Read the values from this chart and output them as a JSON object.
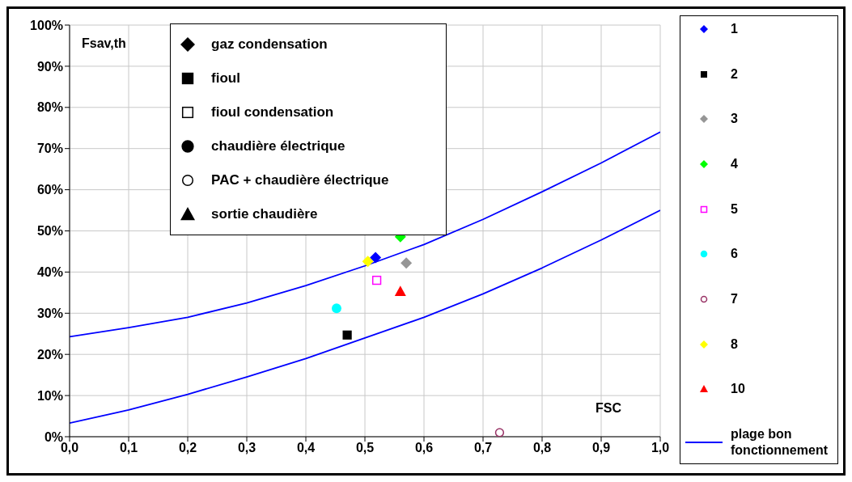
{
  "chart_data": {
    "type": "scatter",
    "xlabel": "FSC",
    "ylabel": "Fsav,th",
    "annotations": [
      "gaz condensation",
      "fioul",
      "fioul condensation",
      "chaudière électrique",
      "PAC + chaudière électrique",
      "sortie chaudière"
    ],
    "series": [
      {
        "name": "1",
        "color": "#0000ff",
        "marker": "diamond",
        "x": [
          0.518
        ],
        "values": [
          43.5
        ]
      },
      {
        "name": "2",
        "color": "#000000",
        "marker": "square",
        "x": [
          0.47
        ],
        "values": [
          24.7
        ]
      },
      {
        "name": "3",
        "color": "#969696",
        "marker": "diamond",
        "x": [
          0.57
        ],
        "values": [
          42.2
        ]
      },
      {
        "name": "4",
        "color": "#00ff00",
        "marker": "diamond",
        "x": [
          0.56
        ],
        "values": [
          48.6
        ]
      },
      {
        "name": "5",
        "color": "#ff00ff",
        "marker": "square-open",
        "x": [
          0.52
        ],
        "values": [
          38
        ]
      },
      {
        "name": "6",
        "color": "#00ffff",
        "marker": "circle",
        "x": [
          0.452
        ],
        "values": [
          31.2
        ]
      },
      {
        "name": "7",
        "color": "#993366",
        "marker": "circle-open",
        "x": [
          0.728
        ],
        "values": [
          1
        ]
      },
      {
        "name": "8",
        "color": "#ffff00",
        "marker": "diamond",
        "x": [
          0.505
        ],
        "values": [
          42.6
        ]
      },
      {
        "name": "10",
        "color": "#ff0000",
        "marker": "triangle",
        "x": [
          0.56
        ],
        "values": [
          35.3
        ]
      },
      {
        "name": "plage bon fonctionnement",
        "type": "line",
        "color": "#0000ff",
        "marker": "none",
        "x": [
          0,
          0.1,
          0.2,
          0.3,
          0.4,
          0.5,
          0.6,
          0.7,
          0.8,
          0.9,
          1.0
        ],
        "values": [
          24.3,
          26.5,
          29,
          32.5,
          36.7,
          41.5,
          46.7,
          52.8,
          59.5,
          66.5,
          74
        ]
      },
      {
        "type": "line",
        "color": "#0000ff",
        "marker": "none",
        "x": [
          0,
          0.1,
          0.2,
          0.3,
          0.4,
          0.5,
          0.6,
          0.7,
          0.8,
          0.9,
          1.0
        ],
        "values": [
          3.3,
          6.5,
          10.3,
          14.5,
          19,
          24,
          29,
          34.7,
          41,
          47.8,
          55
        ]
      }
    ],
    "xlim": [
      0,
      1
    ],
    "xticks": [
      {
        "value": 0,
        "label": "0,0"
      },
      {
        "value": 0.1,
        "label": "0,1"
      },
      {
        "value": 0.2,
        "label": "0,2"
      },
      {
        "value": 0.3,
        "label": "0,3"
      },
      {
        "value": 0.4,
        "label": "0,4"
      },
      {
        "value": 0.5,
        "label": "0,5"
      },
      {
        "value": 0.6,
        "label": "0,6"
      },
      {
        "value": 0.7,
        "label": "0,7"
      },
      {
        "value": 0.8,
        "label": "0,8"
      },
      {
        "value": 0.9,
        "label": "0,9"
      },
      {
        "value": 1,
        "label": "1,0"
      }
    ],
    "ylim": [
      0,
      100
    ],
    "yticks": [
      {
        "value": 0,
        "label": "0%"
      },
      {
        "value": 10,
        "label": "10%"
      },
      {
        "value": 20,
        "label": "20%"
      },
      {
        "value": 30,
        "label": "30%"
      },
      {
        "value": 40,
        "label": "40%"
      },
      {
        "value": 50,
        "label": "50%"
      },
      {
        "value": 60,
        "label": "60%"
      },
      {
        "value": 70,
        "label": "70%"
      },
      {
        "value": 80,
        "label": "80%"
      },
      {
        "value": 90,
        "label": "90%"
      },
      {
        "value": 100,
        "label": "100%"
      }
    ],
    "grid": true,
    "legend": "right"
  }
}
